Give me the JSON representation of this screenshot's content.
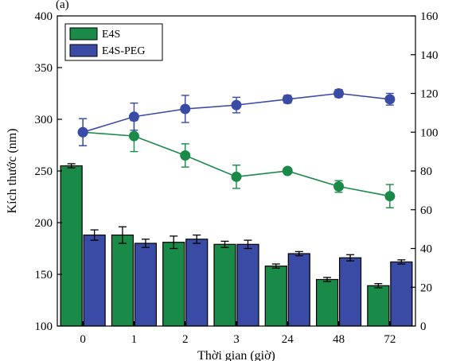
{
  "panel_label": "(a)",
  "chart_data": {
    "type": "bar+line",
    "categories": [
      "0",
      "1",
      "2",
      "3",
      "24",
      "48",
      "72"
    ],
    "xlabel": "Thời gian (giờ)",
    "ylabel": "Kích thước (nm)",
    "ylabel_right": "",
    "ylim": [
      100,
      400
    ],
    "ylim_right": [
      0,
      160
    ],
    "yticks": [
      100,
      150,
      200,
      250,
      300,
      350,
      400
    ],
    "yticks_right": [
      0,
      20,
      40,
      60,
      80,
      100,
      120,
      140,
      160
    ],
    "grid": false,
    "legend_position": "top-left",
    "bar_series": [
      {
        "name": "E4S",
        "color": "#1a8a48",
        "values": [
          255,
          188,
          181,
          179,
          158,
          145,
          139
        ],
        "errors": [
          2,
          8,
          6,
          3,
          2,
          2,
          2
        ]
      },
      {
        "name": "E4S-PEG",
        "color": "#3a4ba6",
        "values": [
          188,
          180,
          184,
          179,
          170,
          166,
          162
        ],
        "errors": [
          5,
          4,
          4,
          4,
          2,
          3,
          2
        ]
      }
    ],
    "line_series": [
      {
        "axis": "right",
        "color": "#1a8a48",
        "values": [
          100,
          98,
          88,
          77,
          80,
          72,
          67
        ],
        "errors": [
          7,
          8,
          6,
          6,
          1,
          3,
          6
        ]
      },
      {
        "axis": "right",
        "color": "#3a4ba6",
        "values": [
          100,
          108,
          112,
          114,
          117,
          120,
          117
        ],
        "errors": [
          7,
          7,
          7,
          4,
          2,
          2,
          3
        ]
      }
    ]
  }
}
